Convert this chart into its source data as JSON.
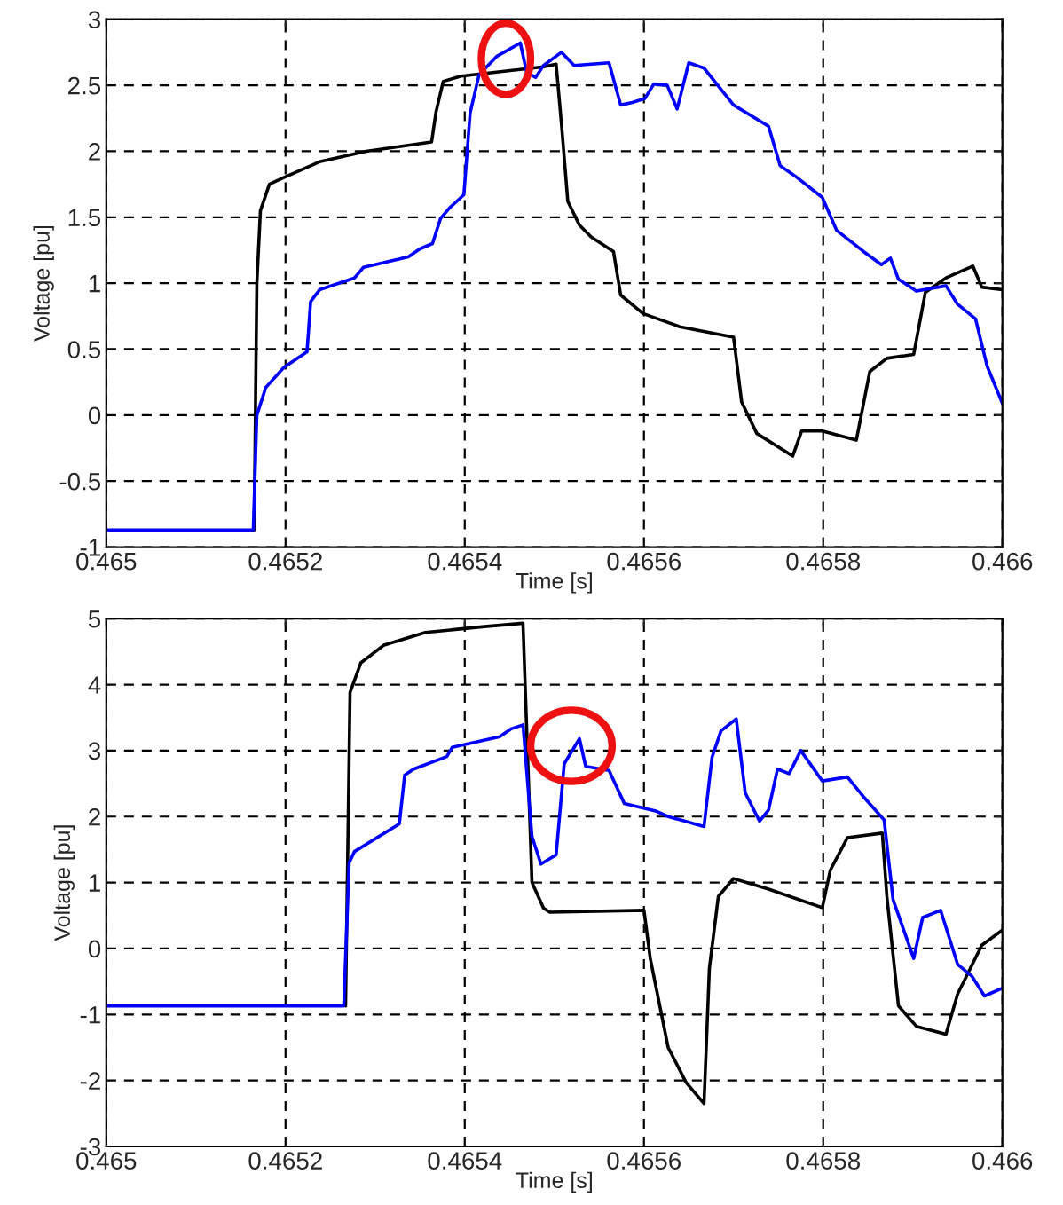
{
  "chart_data": [
    {
      "type": "line",
      "xlabel": "Time [s]",
      "ylabel": "Voltage [pu]",
      "xlim": [
        0.465,
        0.466
      ],
      "ylim": [
        -1,
        3
      ],
      "xticks": [
        0.465,
        0.4652,
        0.4654,
        0.4656,
        0.4658,
        0.466
      ],
      "yticks": [
        -1,
        -0.5,
        0,
        0.5,
        1,
        1.5,
        2,
        2.5,
        3
      ],
      "grid": true,
      "series": [
        {
          "color": "#000000",
          "x": [
            0.465165,
            0.465168,
            0.465172,
            0.465182,
            0.465198,
            0.465238,
            0.46529,
            0.465363,
            0.465368,
            0.465376,
            0.465396,
            0.465488,
            0.465502,
            0.465508,
            0.465515,
            0.465528,
            0.465541,
            0.465566,
            0.465574,
            0.465599,
            0.46564,
            0.4657,
            0.465709,
            0.465726,
            0.465766,
            0.465776,
            0.465799,
            0.465837,
            0.465852,
            0.465871,
            0.465901,
            0.465914,
            0.465937,
            0.465967,
            0.465977,
            0.466
          ],
          "values": [
            -0.87,
            1.0,
            1.55,
            1.75,
            1.8,
            1.92,
            2.0,
            2.07,
            2.3,
            2.53,
            2.57,
            2.64,
            2.66,
            2.2,
            1.62,
            1.44,
            1.35,
            1.24,
            0.91,
            0.77,
            0.67,
            0.59,
            0.1,
            -0.14,
            -0.31,
            -0.12,
            -0.12,
            -0.19,
            0.33,
            0.43,
            0.46,
            0.93,
            1.04,
            1.13,
            0.97,
            0.95
          ]
        },
        {
          "color": "#0000ff",
          "x": [
            0.465,
            0.465164,
            0.465168,
            0.465178,
            0.465198,
            0.465224,
            0.465228,
            0.465238,
            0.465277,
            0.465287,
            0.465337,
            0.46535,
            0.465364,
            0.465373,
            0.465383,
            0.465399,
            0.465406,
            0.465416,
            0.465436,
            0.465462,
            0.465469,
            0.465479,
            0.465488,
            0.465508,
            0.465522,
            0.465561,
            0.465574,
            0.465587,
            0.465601,
            0.465611,
            0.465626,
            0.465637,
            0.46565,
            0.465667,
            0.4657,
            0.465739,
            0.465752,
            0.465769,
            0.465799,
            0.465815,
            0.465845,
            0.465865,
            0.465875,
            0.465884,
            0.465904,
            0.465937,
            0.46595,
            0.46597,
            0.465983,
            0.466
          ],
          "values": [
            -0.87,
            -0.87,
            0.0,
            0.21,
            0.36,
            0.48,
            0.86,
            0.95,
            1.04,
            1.12,
            1.2,
            1.26,
            1.3,
            1.49,
            1.57,
            1.67,
            2.29,
            2.58,
            2.72,
            2.82,
            2.6,
            2.56,
            2.65,
            2.75,
            2.65,
            2.67,
            2.35,
            2.37,
            2.4,
            2.51,
            2.5,
            2.32,
            2.67,
            2.63,
            2.35,
            2.19,
            1.89,
            1.81,
            1.65,
            1.4,
            1.24,
            1.14,
            1.19,
            1.03,
            0.94,
            0.98,
            0.84,
            0.73,
            0.37,
            0.09
          ]
        }
      ]
    },
    {
      "type": "line",
      "xlabel": "Time [s]",
      "ylabel": "Voltage [pu]",
      "xlim": [
        0.465,
        0.466
      ],
      "ylim": [
        -3,
        5
      ],
      "xticks": [
        0.465,
        0.4652,
        0.4654,
        0.4656,
        0.4658,
        0.466
      ],
      "yticks": [
        -3,
        -2,
        -1,
        0,
        1,
        2,
        3,
        4,
        5
      ],
      "grid": true,
      "series": [
        {
          "color": "#000000",
          "x": [
            0.465267,
            0.465272,
            0.465284,
            0.46531,
            0.465356,
            0.465422,
            0.465465,
            0.46547,
            0.465475,
            0.465488,
            0.465495,
            0.4656,
            0.465607,
            0.465627,
            0.465647,
            0.465667,
            0.465673,
            0.465683,
            0.4657,
            0.465739,
            0.465799,
            0.465808,
            0.465827,
            0.465866,
            0.465871,
            0.465884,
            0.465904,
            0.465937,
            0.46595,
            0.465977,
            0.466
          ],
          "values": [
            -0.87,
            3.88,
            4.33,
            4.6,
            4.79,
            4.88,
            4.93,
            2.98,
            1.0,
            0.61,
            0.55,
            0.58,
            -0.15,
            -1.5,
            -2.03,
            -2.35,
            -0.3,
            0.79,
            1.06,
            0.9,
            0.62,
            1.19,
            1.68,
            1.75,
            0.8,
            -0.87,
            -1.18,
            -1.3,
            -0.69,
            0.05,
            0.28
          ]
        },
        {
          "color": "#0000ff",
          "x": [
            0.465,
            0.465265,
            0.465271,
            0.465277,
            0.465327,
            0.465333,
            0.465343,
            0.46538,
            0.465386,
            0.465439,
            0.465452,
            0.465465,
            0.465475,
            0.465485,
            0.465502,
            0.465511,
            0.465528,
            0.465535,
            0.465561,
            0.465578,
            0.465614,
            0.465627,
            0.465667,
            0.465676,
            0.465686,
            0.465703,
            0.465713,
            0.465729,
            0.465739,
            0.465749,
            0.465762,
            0.465775,
            0.465799,
            0.465827,
            0.465845,
            0.465868,
            0.465878,
            0.465901,
            0.465911,
            0.465931,
            0.46595,
            0.465966,
            0.46598,
            0.466
          ],
          "values": [
            -0.87,
            -0.87,
            1.3,
            1.47,
            1.89,
            2.63,
            2.72,
            2.91,
            3.05,
            3.21,
            3.33,
            3.39,
            1.7,
            1.28,
            1.42,
            2.8,
            3.18,
            2.76,
            2.7,
            2.2,
            2.08,
            2.0,
            1.85,
            2.9,
            3.3,
            3.48,
            2.36,
            1.93,
            2.1,
            2.72,
            2.65,
            3.0,
            2.54,
            2.6,
            2.3,
            1.95,
            0.74,
            -0.15,
            0.47,
            0.58,
            -0.24,
            -0.42,
            -0.72,
            -0.6
          ]
        }
      ]
    }
  ]
}
